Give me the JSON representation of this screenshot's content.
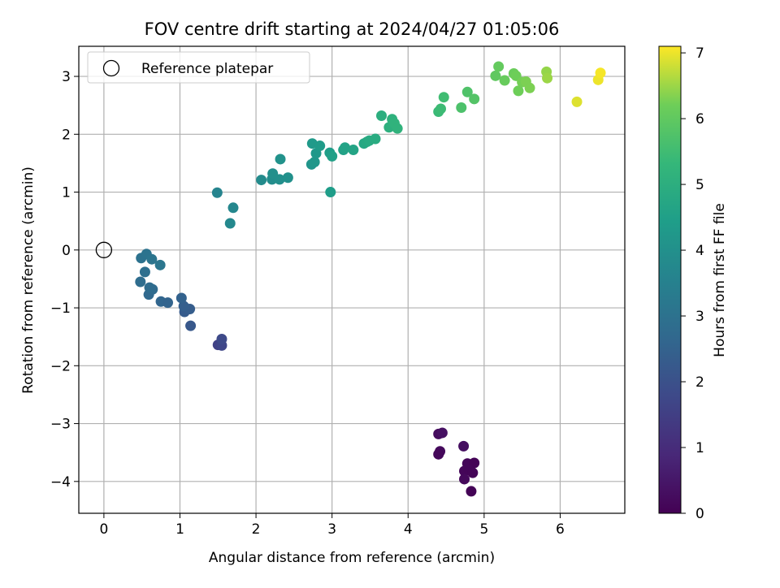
{
  "chart_data": {
    "type": "scatter",
    "title": "FOV centre drift starting at 2024/04/27 01:05:06",
    "xlabel": "Angular distance from reference (arcmin)",
    "ylabel": "Rotation from reference (arcmin)",
    "xlim": [
      -0.33,
      6.85
    ],
    "ylim": [
      -4.55,
      3.52
    ],
    "xticks": [
      0,
      1,
      2,
      3,
      4,
      5,
      6
    ],
    "yticks": [
      -4,
      -3,
      -2,
      -1,
      0,
      1,
      2,
      3
    ],
    "grid": true,
    "colormap": "viridis",
    "colorbar": {
      "label": "Hours from first FF file",
      "range": [
        0,
        7.1
      ],
      "ticks": [
        0,
        1,
        2,
        3,
        4,
        5,
        6,
        7
      ]
    },
    "legend": {
      "placement": "upper-left",
      "entries": [
        {
          "name": "Reference platepar",
          "marker": "open-circle"
        }
      ]
    },
    "reference_point": {
      "x": 0,
      "y": 0
    },
    "points": [
      {
        "x": 4.4,
        "y": -3.18,
        "c": 0.25
      },
      {
        "x": 4.45,
        "y": -3.16,
        "c": 0.35
      },
      {
        "x": 4.42,
        "y": -3.48,
        "c": 0.2
      },
      {
        "x": 4.4,
        "y": -3.53,
        "c": 0.15
      },
      {
        "x": 4.73,
        "y": -3.39,
        "c": 0.3
      },
      {
        "x": 4.78,
        "y": -3.69,
        "c": 0.1
      },
      {
        "x": 4.87,
        "y": -3.68,
        "c": 0.05
      },
      {
        "x": 4.74,
        "y": -3.82,
        "c": 0.12
      },
      {
        "x": 4.8,
        "y": -3.8,
        "c": 0.1
      },
      {
        "x": 4.85,
        "y": -3.85,
        "c": 0.08
      },
      {
        "x": 4.74,
        "y": -3.96,
        "c": 0.18
      },
      {
        "x": 4.83,
        "y": -4.17,
        "c": 0.05
      },
      {
        "x": 1.5,
        "y": -1.64,
        "c": 1.6
      },
      {
        "x": 1.55,
        "y": -1.65,
        "c": 1.7
      },
      {
        "x": 1.55,
        "y": -1.54,
        "c": 1.8
      },
      {
        "x": 1.14,
        "y": -1.31,
        "c": 2.2
      },
      {
        "x": 1.06,
        "y": -1.07,
        "c": 2.3
      },
      {
        "x": 1.13,
        "y": -1.02,
        "c": 2.35
      },
      {
        "x": 1.05,
        "y": -0.97,
        "c": 2.4
      },
      {
        "x": 1.02,
        "y": -0.83,
        "c": 2.5
      },
      {
        "x": 0.75,
        "y": -0.89,
        "c": 2.6
      },
      {
        "x": 0.84,
        "y": -0.91,
        "c": 2.55
      },
      {
        "x": 0.59,
        "y": -0.77,
        "c": 2.7
      },
      {
        "x": 0.64,
        "y": -0.68,
        "c": 2.75
      },
      {
        "x": 0.6,
        "y": -0.65,
        "c": 2.8
      },
      {
        "x": 0.48,
        "y": -0.55,
        "c": 2.85
      },
      {
        "x": 0.54,
        "y": -0.38,
        "c": 2.9
      },
      {
        "x": 0.49,
        "y": -0.14,
        "c": 3.0
      },
      {
        "x": 0.56,
        "y": -0.07,
        "c": 3.05
      },
      {
        "x": 0.63,
        "y": -0.16,
        "c": 3.1
      },
      {
        "x": 0.74,
        "y": -0.26,
        "c": 3.15
      },
      {
        "x": 1.49,
        "y": 0.99,
        "c": 3.6
      },
      {
        "x": 1.7,
        "y": 0.73,
        "c": 3.7
      },
      {
        "x": 1.66,
        "y": 0.46,
        "c": 3.75
      },
      {
        "x": 2.07,
        "y": 1.21,
        "c": 3.85
      },
      {
        "x": 2.21,
        "y": 1.22,
        "c": 3.9
      },
      {
        "x": 2.22,
        "y": 1.32,
        "c": 3.95
      },
      {
        "x": 2.31,
        "y": 1.22,
        "c": 3.95
      },
      {
        "x": 2.42,
        "y": 1.25,
        "c": 4.0
      },
      {
        "x": 2.32,
        "y": 1.57,
        "c": 4.05
      },
      {
        "x": 2.73,
        "y": 1.48,
        "c": 4.15
      },
      {
        "x": 2.77,
        "y": 1.52,
        "c": 4.2
      },
      {
        "x": 2.79,
        "y": 1.67,
        "c": 4.25
      },
      {
        "x": 2.74,
        "y": 1.84,
        "c": 4.3
      },
      {
        "x": 2.84,
        "y": 1.8,
        "c": 4.35
      },
      {
        "x": 2.97,
        "y": 1.68,
        "c": 4.45
      },
      {
        "x": 3.0,
        "y": 1.62,
        "c": 4.5
      },
      {
        "x": 2.98,
        "y": 1.0,
        "c": 4.4
      },
      {
        "x": 3.15,
        "y": 1.73,
        "c": 4.55
      },
      {
        "x": 3.17,
        "y": 1.77,
        "c": 4.6
      },
      {
        "x": 3.28,
        "y": 1.73,
        "c": 4.65
      },
      {
        "x": 3.42,
        "y": 1.84,
        "c": 4.75
      },
      {
        "x": 3.46,
        "y": 1.87,
        "c": 4.8
      },
      {
        "x": 3.49,
        "y": 1.89,
        "c": 4.85
      },
      {
        "x": 3.57,
        "y": 1.92,
        "c": 4.9
      },
      {
        "x": 3.65,
        "y": 2.32,
        "c": 5.0
      },
      {
        "x": 3.75,
        "y": 2.12,
        "c": 5.05
      },
      {
        "x": 3.79,
        "y": 2.26,
        "c": 5.1
      },
      {
        "x": 3.82,
        "y": 2.19,
        "c": 5.15
      },
      {
        "x": 3.86,
        "y": 2.1,
        "c": 5.15
      },
      {
        "x": 4.4,
        "y": 2.39,
        "c": 5.4
      },
      {
        "x": 4.43,
        "y": 2.44,
        "c": 5.45
      },
      {
        "x": 4.47,
        "y": 2.64,
        "c": 5.5
      },
      {
        "x": 4.7,
        "y": 2.46,
        "c": 5.7
      },
      {
        "x": 4.78,
        "y": 2.73,
        "c": 5.75
      },
      {
        "x": 4.87,
        "y": 2.61,
        "c": 5.8
      },
      {
        "x": 5.15,
        "y": 3.01,
        "c": 6.0
      },
      {
        "x": 5.19,
        "y": 3.17,
        "c": 6.05
      },
      {
        "x": 5.27,
        "y": 2.93,
        "c": 6.1
      },
      {
        "x": 5.39,
        "y": 3.05,
        "c": 6.15
      },
      {
        "x": 5.42,
        "y": 3.01,
        "c": 6.2
      },
      {
        "x": 5.45,
        "y": 2.75,
        "c": 6.2
      },
      {
        "x": 5.5,
        "y": 2.9,
        "c": 6.25
      },
      {
        "x": 5.55,
        "y": 2.91,
        "c": 6.3
      },
      {
        "x": 5.6,
        "y": 2.8,
        "c": 6.3
      },
      {
        "x": 5.82,
        "y": 3.08,
        "c": 6.45
      },
      {
        "x": 5.83,
        "y": 2.97,
        "c": 6.5
      },
      {
        "x": 6.22,
        "y": 2.56,
        "c": 6.9
      },
      {
        "x": 6.5,
        "y": 2.94,
        "c": 7.0
      },
      {
        "x": 6.53,
        "y": 3.06,
        "c": 7.05
      }
    ]
  }
}
